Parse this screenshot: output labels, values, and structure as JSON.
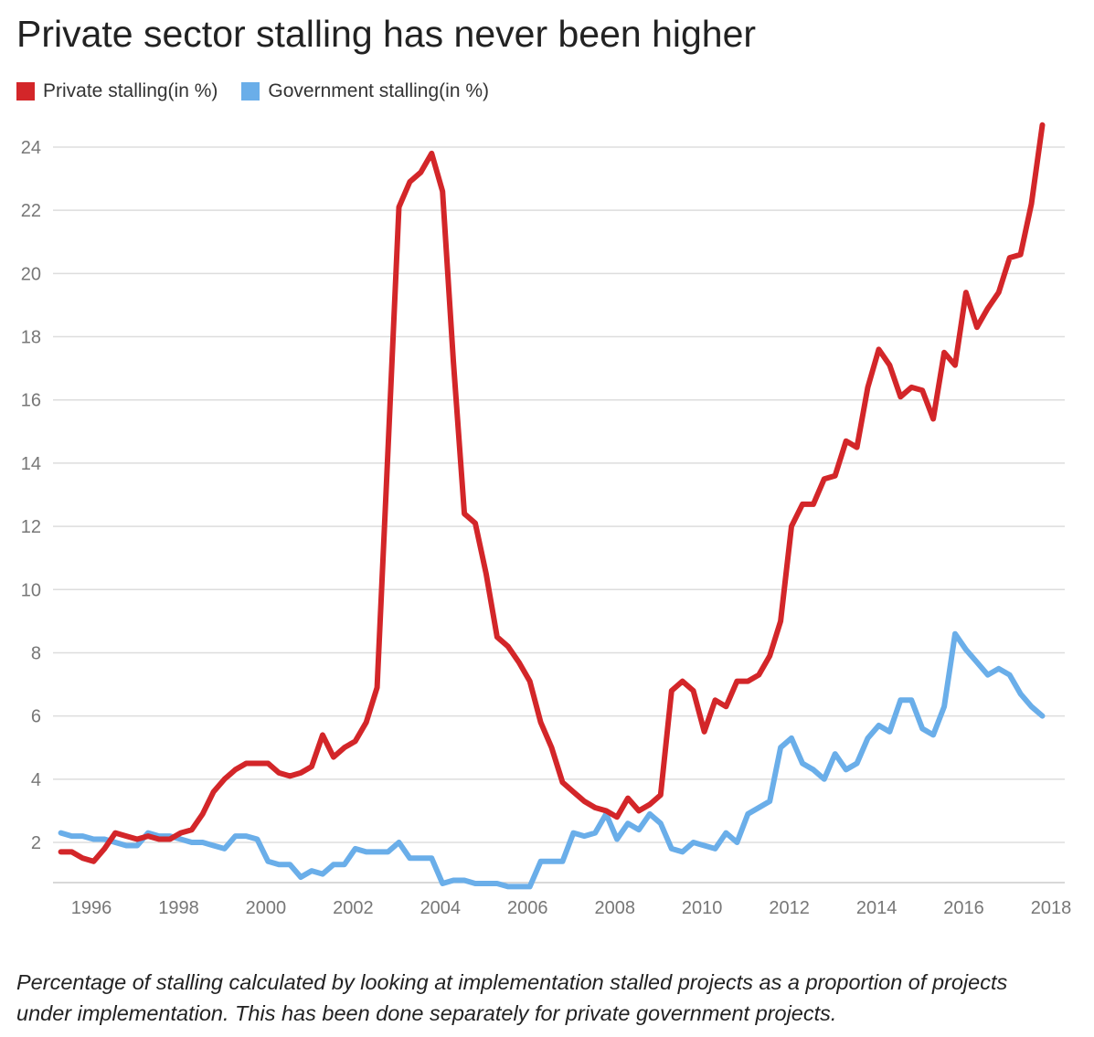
{
  "chart_data": {
    "type": "line",
    "title": "Private sector stalling has never been higher",
    "xlabel": "",
    "ylabel": "",
    "x_ticks": [
      "1996",
      "1998",
      "2000",
      "2002",
      "2004",
      "2006",
      "2008",
      "2010",
      "2012",
      "2014",
      "2016",
      "2018"
    ],
    "y_ticks": [
      "2",
      "4",
      "6",
      "8",
      "10",
      "12",
      "14",
      "16",
      "18",
      "20",
      "22",
      "24"
    ],
    "xlim": [
      1995.25,
      2018.25
    ],
    "ylim": [
      0.8,
      25
    ],
    "series": [
      {
        "name": "Private stalling(in %)",
        "color": "#d32629",
        "points": [
          [
            1995.3,
            1.7
          ],
          [
            1995.55,
            1.7
          ],
          [
            1995.8,
            1.5
          ],
          [
            1996.05,
            1.4
          ],
          [
            1996.3,
            1.8
          ],
          [
            1996.55,
            2.3
          ],
          [
            1996.8,
            2.2
          ],
          [
            1997.05,
            2.1
          ],
          [
            1997.3,
            2.2
          ],
          [
            1997.55,
            2.1
          ],
          [
            1997.8,
            2.1
          ],
          [
            1998.05,
            2.3
          ],
          [
            1998.3,
            2.4
          ],
          [
            1998.55,
            2.9
          ],
          [
            1998.8,
            3.6
          ],
          [
            1999.05,
            4.0
          ],
          [
            1999.3,
            4.3
          ],
          [
            1999.55,
            4.5
          ],
          [
            1999.8,
            4.5
          ],
          [
            2000.05,
            4.5
          ],
          [
            2000.3,
            4.2
          ],
          [
            2000.55,
            4.1
          ],
          [
            2000.8,
            4.2
          ],
          [
            2001.05,
            4.4
          ],
          [
            2001.3,
            5.4
          ],
          [
            2001.55,
            4.7
          ],
          [
            2001.8,
            5.0
          ],
          [
            2002.05,
            5.2
          ],
          [
            2002.3,
            5.8
          ],
          [
            2002.55,
            6.9
          ],
          [
            2002.8,
            14.4
          ],
          [
            2003.05,
            22.1
          ],
          [
            2003.3,
            22.9
          ],
          [
            2003.55,
            23.2
          ],
          [
            2003.8,
            23.8
          ],
          [
            2004.05,
            22.6
          ],
          [
            2004.3,
            17.2
          ],
          [
            2004.55,
            12.4
          ],
          [
            2004.8,
            12.1
          ],
          [
            2005.05,
            10.5
          ],
          [
            2005.3,
            8.5
          ],
          [
            2005.55,
            8.2
          ],
          [
            2005.8,
            7.7
          ],
          [
            2006.05,
            7.1
          ],
          [
            2006.3,
            5.8
          ],
          [
            2006.55,
            5.0
          ],
          [
            2006.8,
            3.9
          ],
          [
            2007.05,
            3.6
          ],
          [
            2007.3,
            3.3
          ],
          [
            2007.55,
            3.1
          ],
          [
            2007.8,
            3.0
          ],
          [
            2008.05,
            2.8
          ],
          [
            2008.3,
            3.4
          ],
          [
            2008.55,
            3.0
          ],
          [
            2008.8,
            3.2
          ],
          [
            2009.05,
            3.5
          ],
          [
            2009.3,
            6.8
          ],
          [
            2009.55,
            7.1
          ],
          [
            2009.8,
            6.8
          ],
          [
            2010.05,
            5.5
          ],
          [
            2010.3,
            6.5
          ],
          [
            2010.55,
            6.3
          ],
          [
            2010.8,
            7.1
          ],
          [
            2011.05,
            7.1
          ],
          [
            2011.3,
            7.3
          ],
          [
            2011.55,
            7.9
          ],
          [
            2011.8,
            9.0
          ],
          [
            2012.05,
            12.0
          ],
          [
            2012.3,
            12.7
          ],
          [
            2012.55,
            12.7
          ],
          [
            2012.8,
            13.5
          ],
          [
            2013.05,
            13.6
          ],
          [
            2013.3,
            14.7
          ],
          [
            2013.55,
            14.5
          ],
          [
            2013.8,
            16.4
          ],
          [
            2014.05,
            17.6
          ],
          [
            2014.3,
            17.1
          ],
          [
            2014.55,
            16.1
          ],
          [
            2014.8,
            16.4
          ],
          [
            2015.05,
            16.3
          ],
          [
            2015.3,
            15.4
          ],
          [
            2015.55,
            17.5
          ],
          [
            2015.8,
            17.1
          ],
          [
            2016.05,
            19.4
          ],
          [
            2016.3,
            18.3
          ],
          [
            2016.55,
            18.9
          ],
          [
            2016.8,
            19.4
          ],
          [
            2017.05,
            20.5
          ],
          [
            2017.3,
            20.6
          ],
          [
            2017.55,
            22.2
          ],
          [
            2017.8,
            24.7
          ]
        ]
      },
      {
        "name": "Government stalling(in %)",
        "color": "#6aaee9",
        "points": [
          [
            1995.3,
            2.3
          ],
          [
            1995.55,
            2.2
          ],
          [
            1995.8,
            2.2
          ],
          [
            1996.05,
            2.1
          ],
          [
            1996.3,
            2.1
          ],
          [
            1996.55,
            2.0
          ],
          [
            1996.8,
            1.9
          ],
          [
            1997.05,
            1.9
          ],
          [
            1997.3,
            2.3
          ],
          [
            1997.55,
            2.2
          ],
          [
            1997.8,
            2.2
          ],
          [
            1998.05,
            2.1
          ],
          [
            1998.3,
            2.0
          ],
          [
            1998.55,
            2.0
          ],
          [
            1998.8,
            1.9
          ],
          [
            1999.05,
            1.8
          ],
          [
            1999.3,
            2.2
          ],
          [
            1999.55,
            2.2
          ],
          [
            1999.8,
            2.1
          ],
          [
            2000.05,
            1.4
          ],
          [
            2000.3,
            1.3
          ],
          [
            2000.55,
            1.3
          ],
          [
            2000.8,
            0.9
          ],
          [
            2001.05,
            1.1
          ],
          [
            2001.3,
            1.0
          ],
          [
            2001.55,
            1.3
          ],
          [
            2001.8,
            1.3
          ],
          [
            2002.05,
            1.8
          ],
          [
            2002.3,
            1.7
          ],
          [
            2002.55,
            1.7
          ],
          [
            2002.8,
            1.7
          ],
          [
            2003.05,
            2.0
          ],
          [
            2003.3,
            1.5
          ],
          [
            2003.55,
            1.5
          ],
          [
            2003.8,
            1.5
          ],
          [
            2004.05,
            0.7
          ],
          [
            2004.3,
            0.8
          ],
          [
            2004.55,
            0.8
          ],
          [
            2004.8,
            0.7
          ],
          [
            2005.05,
            0.7
          ],
          [
            2005.3,
            0.7
          ],
          [
            2005.55,
            0.6
          ],
          [
            2005.8,
            0.6
          ],
          [
            2006.05,
            0.6
          ],
          [
            2006.3,
            1.4
          ],
          [
            2006.55,
            1.4
          ],
          [
            2006.8,
            1.4
          ],
          [
            2007.05,
            2.3
          ],
          [
            2007.3,
            2.2
          ],
          [
            2007.55,
            2.3
          ],
          [
            2007.8,
            2.9
          ],
          [
            2008.05,
            2.1
          ],
          [
            2008.3,
            2.6
          ],
          [
            2008.55,
            2.4
          ],
          [
            2008.8,
            2.9
          ],
          [
            2009.05,
            2.6
          ],
          [
            2009.3,
            1.8
          ],
          [
            2009.55,
            1.7
          ],
          [
            2009.8,
            2.0
          ],
          [
            2010.05,
            1.9
          ],
          [
            2010.3,
            1.8
          ],
          [
            2010.55,
            2.3
          ],
          [
            2010.8,
            2.0
          ],
          [
            2011.05,
            2.9
          ],
          [
            2011.3,
            3.1
          ],
          [
            2011.55,
            3.3
          ],
          [
            2011.8,
            5.0
          ],
          [
            2012.05,
            5.3
          ],
          [
            2012.3,
            4.5
          ],
          [
            2012.55,
            4.3
          ],
          [
            2012.8,
            4.0
          ],
          [
            2013.05,
            4.8
          ],
          [
            2013.3,
            4.3
          ],
          [
            2013.55,
            4.5
          ],
          [
            2013.8,
            5.3
          ],
          [
            2014.05,
            5.7
          ],
          [
            2014.3,
            5.5
          ],
          [
            2014.55,
            6.5
          ],
          [
            2014.8,
            6.5
          ],
          [
            2015.05,
            5.6
          ],
          [
            2015.3,
            5.4
          ],
          [
            2015.55,
            6.3
          ],
          [
            2015.8,
            8.6
          ],
          [
            2016.05,
            8.1
          ],
          [
            2016.3,
            7.7
          ],
          [
            2016.55,
            7.3
          ],
          [
            2016.8,
            7.5
          ],
          [
            2017.05,
            7.3
          ],
          [
            2017.3,
            6.7
          ],
          [
            2017.55,
            6.3
          ],
          [
            2017.8,
            6.0
          ]
        ]
      }
    ],
    "grid": true,
    "legend_position": "top-left"
  },
  "note": "Percentage of stalling calculated by looking at implementation stalled projects as a proportion of projects under implementation. This has been done separately for private government projects."
}
